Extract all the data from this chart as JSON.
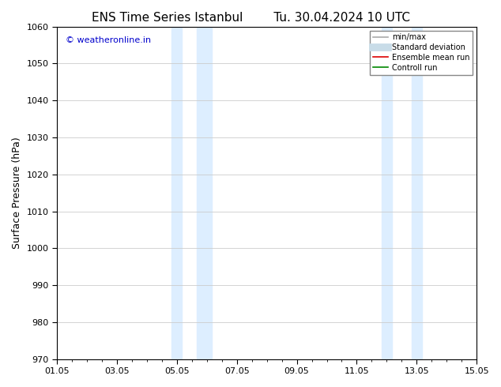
{
  "title_left": "ENS Time Series Istanbul",
  "title_right": "Tu. 30.04.2024 10 UTC",
  "ylabel": "Surface Pressure (hPa)",
  "xlim_num": [
    0,
    14
  ],
  "ylim": [
    970,
    1060
  ],
  "yticks": [
    970,
    980,
    990,
    1000,
    1010,
    1020,
    1030,
    1040,
    1050,
    1060
  ],
  "xticks_labels": [
    "01.05",
    "03.05",
    "05.05",
    "07.05",
    "09.05",
    "11.05",
    "13.05",
    "15.05"
  ],
  "xticks_pos": [
    0,
    2,
    4,
    6,
    8,
    10,
    12,
    14
  ],
  "shaded_regions": [
    {
      "xmin": 3.83,
      "xmax": 4.17,
      "color": "#ddeeff"
    },
    {
      "xmin": 4.67,
      "xmax": 5.17,
      "color": "#ddeeff"
    },
    {
      "xmin": 10.83,
      "xmax": 11.17,
      "color": "#ddeeff"
    },
    {
      "xmin": 11.83,
      "xmax": 12.17,
      "color": "#ddeeff"
    }
  ],
  "watermark_text": "© weatheronline.in",
  "watermark_color": "#0000cc",
  "legend_items": [
    {
      "label": "min/max",
      "color": "#aaaaaa",
      "lw": 1.2,
      "style": "solid"
    },
    {
      "label": "Standard deviation",
      "color": "#c8dce8",
      "lw": 7,
      "style": "solid"
    },
    {
      "label": "Ensemble mean run",
      "color": "#dd0000",
      "lw": 1.2,
      "style": "solid"
    },
    {
      "label": "Controll run",
      "color": "#008800",
      "lw": 1.2,
      "style": "solid"
    }
  ],
  "bg_color": "#ffffff",
  "grid_color": "#cccccc",
  "title_fontsize": 11,
  "axis_label_fontsize": 9,
  "tick_fontsize": 8
}
